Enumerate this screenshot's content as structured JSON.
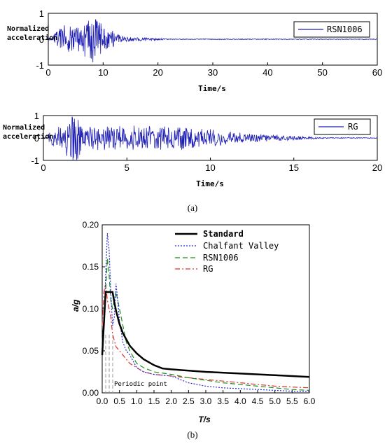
{
  "chart_data": [
    {
      "type": "line",
      "xlabel": "Time/s",
      "ylabel": "Normalized\nacceleration",
      "xlim": [
        0,
        60
      ],
      "ylim": [
        -1,
        1
      ],
      "xticks": [
        "0",
        "10",
        "20",
        "30",
        "40",
        "50",
        "60"
      ],
      "yticks": [
        "1",
        "0",
        "-1"
      ],
      "legend_position": "top-right",
      "series": [
        {
          "name": "RSN1006",
          "color": "#1f1fb4",
          "note_values": "dense acceleration record; strong shaking roughly 2–13 s, peak about 0.8–1.0 near 8–9 s, decaying to near zero after ~20 s"
        }
      ]
    },
    {
      "type": "line",
      "xlabel": "Time/s",
      "ylabel": "Normalized\nacceleration",
      "xlim": [
        0,
        20
      ],
      "ylim": [
        -1,
        1
      ],
      "xticks": [
        "0",
        "5",
        "10",
        "15",
        "20"
      ],
      "yticks": [
        "1",
        "0",
        "-1"
      ],
      "legend_position": "top-right",
      "series": [
        {
          "name": "RG",
          "color": "#1f1fb4",
          "note_values": "dense acceleration record; peak about 1.0 near 1.8 s, strong shaking to ~8 s, decaying to near zero by ~17 s"
        }
      ]
    },
    {
      "type": "line",
      "xlabel": "T/s",
      "ylabel": "a/g",
      "xlim": [
        0,
        6
      ],
      "ylim": [
        0,
        0.2
      ],
      "xticks": [
        "0.0",
        "0.5",
        "1.0",
        "1.5",
        "2.0",
        "2.5",
        "3.0",
        "3.5",
        "4.0",
        "4.5",
        "5.0",
        "5.5",
        "6.0"
      ],
      "yticks": [
        "0.00",
        "0.05",
        "0.10",
        "0.15",
        "0.20"
      ],
      "legend_position": "top-right",
      "annotation": "Periodic point",
      "series": [
        {
          "name": "Standard",
          "color": "#000000",
          "style": "solid",
          "x": [
            0.0,
            0.1,
            0.2,
            0.25,
            0.3,
            0.35,
            0.4,
            0.5,
            0.6,
            0.8,
            1.0,
            1.2,
            1.5,
            1.75,
            2.0,
            3.0,
            4.0,
            5.0,
            6.0
          ],
          "y": [
            0.045,
            0.12,
            0.12,
            0.12,
            0.12,
            0.108,
            0.098,
            0.082,
            0.071,
            0.056,
            0.047,
            0.04,
            0.033,
            0.029,
            0.028,
            0.025,
            0.023,
            0.021,
            0.019
          ]
        },
        {
          "name": "Chalfant Valley",
          "color": "#2b2bd6",
          "style": "dotted",
          "x": [
            0.0,
            0.05,
            0.1,
            0.15,
            0.2,
            0.25,
            0.3,
            0.35,
            0.4,
            0.45,
            0.5,
            0.6,
            0.7,
            0.8,
            1.0,
            1.2,
            1.5,
            2.0,
            2.5,
            3.0,
            3.5,
            4.0,
            4.5,
            5.0,
            5.5,
            6.0
          ],
          "y": [
            0.05,
            0.08,
            0.14,
            0.19,
            0.17,
            0.12,
            0.08,
            0.09,
            0.13,
            0.11,
            0.085,
            0.06,
            0.05,
            0.045,
            0.03,
            0.025,
            0.022,
            0.02,
            0.012,
            0.008,
            0.006,
            0.005,
            0.004,
            0.003,
            0.002,
            0.002
          ]
        },
        {
          "name": "RSN1006",
          "color": "#1a8f1a",
          "style": "dashed",
          "x": [
            0.0,
            0.05,
            0.1,
            0.15,
            0.2,
            0.25,
            0.3,
            0.35,
            0.4,
            0.5,
            0.6,
            0.7,
            0.8,
            1.0,
            1.2,
            1.5,
            2.0,
            2.5,
            3.0,
            3.5,
            4.0,
            4.5,
            5.0,
            5.5,
            6.0
          ],
          "y": [
            0.06,
            0.09,
            0.12,
            0.16,
            0.14,
            0.11,
            0.1,
            0.11,
            0.12,
            0.1,
            0.08,
            0.06,
            0.05,
            0.035,
            0.03,
            0.025,
            0.022,
            0.018,
            0.015,
            0.012,
            0.01,
            0.008,
            0.006,
            0.004,
            0.003
          ]
        },
        {
          "name": "RG",
          "color": "#e03030",
          "style": "dashdot",
          "x": [
            0.0,
            0.05,
            0.1,
            0.15,
            0.2,
            0.25,
            0.3,
            0.4,
            0.5,
            0.6,
            0.8,
            1.0,
            1.2,
            1.5,
            2.0,
            2.5,
            3.0,
            3.5,
            4.0,
            4.5,
            5.0,
            5.5,
            6.0
          ],
          "y": [
            0.08,
            0.12,
            0.13,
            0.11,
            0.1,
            0.09,
            0.07,
            0.055,
            0.05,
            0.045,
            0.035,
            0.03,
            0.025,
            0.022,
            0.02,
            0.018,
            0.016,
            0.014,
            0.012,
            0.01,
            0.008,
            0.007,
            0.006
          ]
        }
      ]
    }
  ],
  "captions": {
    "a": "(a)",
    "b": "(b)"
  }
}
